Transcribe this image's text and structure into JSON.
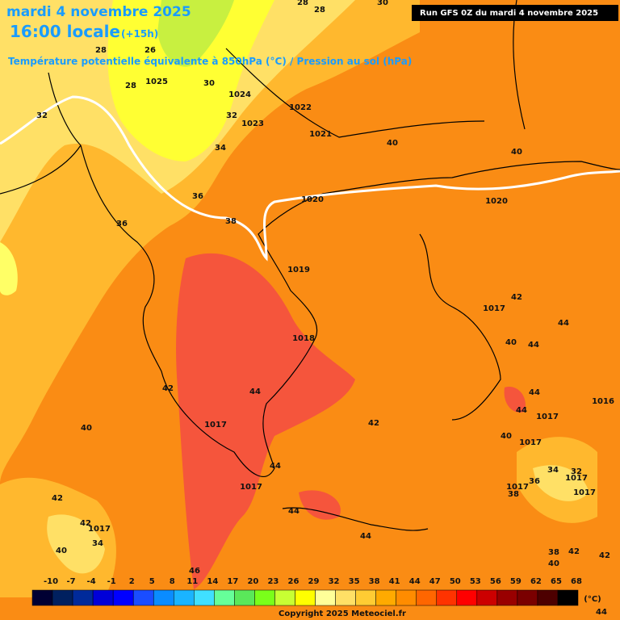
{
  "header": {
    "date": "mardi 4 novembre 2025",
    "time": "16:00 locale",
    "offset": "(+15h)",
    "subtitle": "Température potentielle équivalente à 850hPa (°C) / Pression au sol (hPa)"
  },
  "run_info": "Run GFS 0Z du mardi 4 novembre 2025",
  "map_labels": [
    "28",
    "28",
    "30",
    "28",
    "26",
    "32",
    "28",
    "1025",
    "30",
    "1024",
    "32",
    "1023",
    "1022",
    "1021",
    "40",
    "34",
    "40",
    "36",
    "1020",
    "1020",
    "38",
    "36",
    "1019",
    "1017",
    "42",
    "44",
    "1018",
    "40",
    "44",
    "42",
    "44",
    "44",
    "1016",
    "1017",
    "42",
    "44",
    "1017",
    "40",
    "40",
    "1017",
    "44",
    "34",
    "32",
    "1017",
    "1017",
    "1017",
    "36",
    "38",
    "1017",
    "42",
    "44",
    "42",
    "1017",
    "34",
    "44",
    "40",
    "38",
    "42",
    "42",
    "40",
    "46",
    "44"
  ],
  "colorbar": {
    "unit": "(°C)",
    "labels": [
      "-10",
      "-7",
      "-4",
      "-1",
      "2",
      "5",
      "8",
      "11",
      "14",
      "17",
      "20",
      "23",
      "26",
      "29",
      "32",
      "35",
      "38",
      "41",
      "44",
      "47",
      "50",
      "53",
      "56",
      "59",
      "62",
      "65",
      "68"
    ],
    "colors": [
      "#000033",
      "#00205f",
      "#002a9a",
      "#0000d8",
      "#0000ff",
      "#1a4dff",
      "#0a8cff",
      "#1ab4ff",
      "#40e0ff",
      "#66ff99",
      "#5ae85a",
      "#7aff1a",
      "#c8ff33",
      "#ffff00",
      "#ffff99",
      "#ffe066",
      "#ffcc33",
      "#ffaa00",
      "#ff8c00",
      "#ff6600",
      "#ff3300",
      "#ff0000",
      "#cc0000",
      "#990000",
      "#7a0000",
      "#4d0000",
      "#000000"
    ]
  },
  "copyright": "Copyright 2025 Meteociel.fr"
}
